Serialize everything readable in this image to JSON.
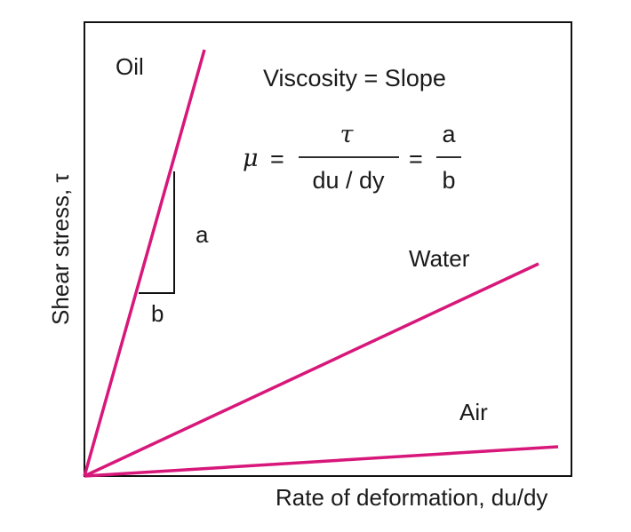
{
  "colors": {
    "line": "#d8177a",
    "frame": "#111111",
    "text": "#1a1a1a"
  },
  "axes": {
    "ylabel": "Shear stress, τ",
    "xlabel": "Rate of deformation, du/dy"
  },
  "fluids": [
    {
      "name": "Oil",
      "label": "Oil"
    },
    {
      "name": "Water",
      "label": "Water"
    },
    {
      "name": "Air",
      "label": "Air"
    }
  ],
  "equation": {
    "title": "Viscosity = Slope",
    "mu": "μ",
    "equals_1": "=",
    "numerator": "τ",
    "denominator": "du / dy",
    "equals_2": "=",
    "ratio_num": "a",
    "ratio_den": "b"
  },
  "slope_triangle": {
    "rise_label": "a",
    "run_label": "b"
  }
}
